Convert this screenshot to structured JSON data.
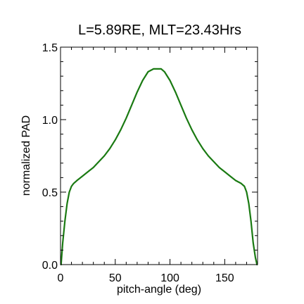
{
  "chart_data": {
    "type": "line",
    "title": "L=5.89RE, MLT=23.43Hrs",
    "xlabel": "pitch-angle (deg)",
    "ylabel": "normalized PAD",
    "xlim": [
      0,
      180
    ],
    "ylim": [
      0,
      1.5
    ],
    "xticks": [
      0,
      50,
      100,
      150
    ],
    "xtick_labels": [
      "0",
      "50",
      "100",
      "150"
    ],
    "yticks": [
      0,
      0.5,
      1.0,
      1.5
    ],
    "ytick_labels": [
      "0.0",
      "0.5",
      "1.0",
      "1.5"
    ],
    "x_minor_step": 10,
    "y_minor_step": 0.1,
    "grid": false,
    "series": [
      {
        "color": "#1a7a12",
        "x": [
          0.5,
          2,
          4,
          6,
          8,
          10,
          12,
          15,
          20,
          25,
          30,
          35,
          40,
          45,
          50,
          55,
          60,
          65,
          70,
          75,
          80,
          85,
          88,
          90,
          92,
          95,
          100,
          105,
          110,
          115,
          120,
          125,
          130,
          135,
          140,
          145,
          150,
          155,
          160,
          165,
          168,
          170,
          172,
          174,
          176,
          178,
          179.5
        ],
        "y": [
          0.0,
          0.15,
          0.3,
          0.42,
          0.5,
          0.54,
          0.56,
          0.58,
          0.61,
          0.64,
          0.67,
          0.71,
          0.75,
          0.8,
          0.86,
          0.93,
          1.01,
          1.1,
          1.19,
          1.27,
          1.33,
          1.35,
          1.35,
          1.35,
          1.35,
          1.33,
          1.27,
          1.19,
          1.1,
          1.01,
          0.93,
          0.86,
          0.8,
          0.75,
          0.71,
          0.67,
          0.64,
          0.61,
          0.58,
          0.56,
          0.54,
          0.5,
          0.42,
          0.3,
          0.15,
          0.05,
          0.0
        ]
      }
    ]
  }
}
